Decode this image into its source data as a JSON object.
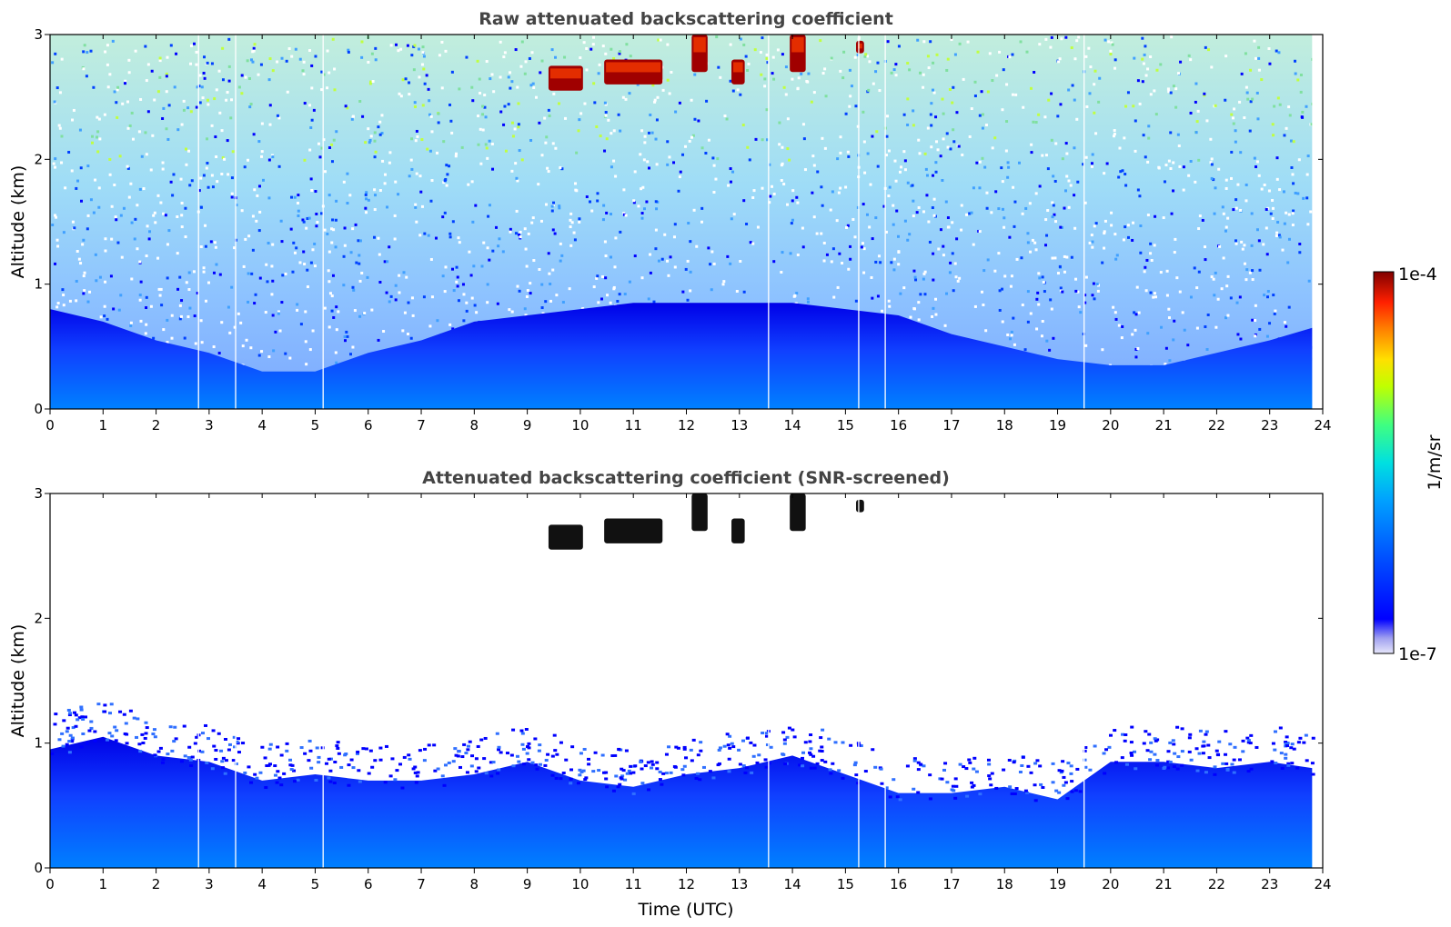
{
  "chart_data": [
    {
      "type": "heatmap",
      "title": "Raw attenuated backscattering coefficient",
      "xlabel": "",
      "ylabel": "Altitude (km)",
      "xlim": [
        0,
        24
      ],
      "ylim": [
        0,
        3
      ],
      "x_ticks": [
        "0",
        "1",
        "2",
        "3",
        "4",
        "5",
        "6",
        "7",
        "8",
        "9",
        "10",
        "11",
        "12",
        "13",
        "14",
        "15",
        "16",
        "17",
        "18",
        "19",
        "20",
        "21",
        "22",
        "23",
        "24"
      ],
      "y_ticks": [
        "0",
        "1",
        "2",
        "3"
      ],
      "data_gaps_utc": [
        2.8,
        3.5,
        5.15,
        13.55,
        15.25,
        15.75,
        19.5
      ],
      "boundary_layer_top_km": {
        "x": [
          0,
          1,
          2,
          3,
          4,
          5,
          6,
          7,
          8,
          9,
          10,
          11,
          12,
          13,
          14,
          15,
          16,
          17,
          18,
          19,
          20,
          21,
          22,
          23,
          23.8
        ],
        "y": [
          0.8,
          0.7,
          0.55,
          0.45,
          0.3,
          0.3,
          0.45,
          0.55,
          0.7,
          0.75,
          0.8,
          0.85,
          0.85,
          0.85,
          0.85,
          0.8,
          0.75,
          0.6,
          0.5,
          0.4,
          0.35,
          0.35,
          0.45,
          0.55,
          0.65
        ]
      },
      "cloud_layers": [
        {
          "x_start": 9.4,
          "x_end": 10.05,
          "alt_bottom_km": 2.55,
          "alt_top_km": 2.75
        },
        {
          "x_start": 10.45,
          "x_end": 11.55,
          "alt_bottom_km": 2.6,
          "alt_top_km": 2.8
        },
        {
          "x_start": 12.1,
          "x_end": 12.4,
          "alt_bottom_km": 2.7,
          "alt_top_km": 3.0
        },
        {
          "x_start": 12.85,
          "x_end": 13.1,
          "alt_bottom_km": 2.6,
          "alt_top_km": 2.8
        },
        {
          "x_start": 13.95,
          "x_end": 14.25,
          "alt_bottom_km": 2.7,
          "alt_top_km": 3.0
        },
        {
          "x_start": 15.2,
          "x_end": 15.35,
          "alt_bottom_km": 2.85,
          "alt_top_km": 2.95
        }
      ]
    },
    {
      "type": "heatmap",
      "title": "Attenuated backscattering coefficient (SNR-screened)",
      "xlabel": "Time (UTC)",
      "ylabel": "Altitude (km)",
      "xlim": [
        0,
        24
      ],
      "ylim": [
        0,
        3
      ],
      "x_ticks": [
        "0",
        "1",
        "2",
        "3",
        "4",
        "5",
        "6",
        "7",
        "8",
        "9",
        "10",
        "11",
        "12",
        "13",
        "14",
        "15",
        "16",
        "17",
        "18",
        "19",
        "20",
        "21",
        "22",
        "23",
        "24"
      ],
      "y_ticks": [
        "0",
        "1",
        "2",
        "3"
      ],
      "data_gaps_utc": [
        2.8,
        3.5,
        5.15,
        13.55,
        15.25,
        15.75,
        19.5
      ],
      "signal_top_km": {
        "x": [
          0,
          1,
          2,
          3,
          4,
          5,
          6,
          7,
          8,
          9,
          10,
          11,
          12,
          13,
          14,
          15,
          16,
          17,
          18,
          19,
          20,
          21,
          22,
          23,
          23.8
        ],
        "y": [
          0.95,
          1.05,
          0.9,
          0.85,
          0.7,
          0.75,
          0.7,
          0.7,
          0.75,
          0.85,
          0.7,
          0.65,
          0.75,
          0.8,
          0.9,
          0.75,
          0.6,
          0.6,
          0.65,
          0.55,
          0.85,
          0.85,
          0.8,
          0.85,
          0.8
        ]
      },
      "cloud_layers": [
        {
          "x_start": 9.4,
          "x_end": 10.05,
          "alt_bottom_km": 2.55,
          "alt_top_km": 2.75
        },
        {
          "x_start": 10.45,
          "x_end": 11.55,
          "alt_bottom_km": 2.6,
          "alt_top_km": 2.8
        },
        {
          "x_start": 12.1,
          "x_end": 12.4,
          "alt_bottom_km": 2.7,
          "alt_top_km": 3.0
        },
        {
          "x_start": 12.85,
          "x_end": 13.1,
          "alt_bottom_km": 2.6,
          "alt_top_km": 2.8
        },
        {
          "x_start": 13.95,
          "x_end": 14.25,
          "alt_bottom_km": 2.7,
          "alt_top_km": 3.0
        },
        {
          "x_start": 15.2,
          "x_end": 15.35,
          "alt_bottom_km": 2.85,
          "alt_top_km": 2.95
        }
      ]
    }
  ],
  "colorbar": {
    "label": "1/m/sr",
    "max_label": "1e-4",
    "min_label": "1e-7",
    "scale": "log",
    "colormap": "jet",
    "colors": [
      "#e6e6fa",
      "#a0a0f0",
      "#0000ff",
      "#0050ff",
      "#00a0ff",
      "#00e0e0",
      "#40ff80",
      "#c0ff00",
      "#ffe000",
      "#ff8000",
      "#ff2000",
      "#b00000",
      "#800000"
    ]
  }
}
